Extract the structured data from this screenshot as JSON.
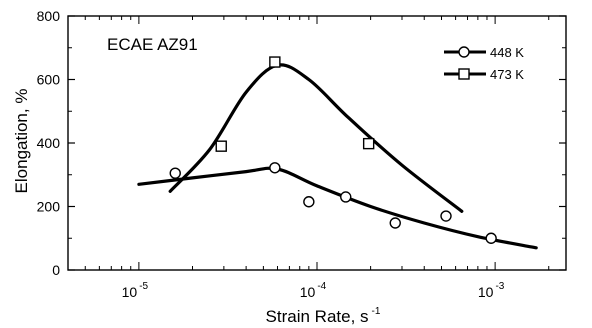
{
  "chart_data": {
    "type": "scatter",
    "title": "",
    "annotation": "ECAE AZ91",
    "xlabel": "Strain Rate, s",
    "xlabel_sup": "-1",
    "ylabel": "Elongation, %",
    "x_scale": "log",
    "xlim": [
      4e-06,
      0.0025
    ],
    "ylim": [
      0,
      800
    ],
    "y_ticks": [
      0,
      200,
      400,
      600,
      800
    ],
    "x_ticks": [
      {
        "value": 1e-05,
        "base": "10",
        "exp": "-5"
      },
      {
        "value": 0.0001,
        "base": "10",
        "exp": "-4"
      },
      {
        "value": 0.001,
        "base": "10",
        "exp": "-3"
      }
    ],
    "grid": false,
    "legend": "top-right",
    "series": [
      {
        "name": "448 K",
        "marker": "circle",
        "points": [
          {
            "x": 1.6e-05,
            "y": 305
          },
          {
            "x": 5.8e-05,
            "y": 322
          },
          {
            "x": 9e-05,
            "y": 215
          },
          {
            "x": 0.000145,
            "y": 230
          },
          {
            "x": 0.000275,
            "y": 148
          },
          {
            "x": 0.00053,
            "y": 170
          },
          {
            "x": 0.00095,
            "y": 100
          }
        ],
        "fit": [
          {
            "x": 1e-05,
            "y": 270
          },
          {
            "x": 2e-05,
            "y": 290
          },
          {
            "x": 4e-05,
            "y": 310
          },
          {
            "x": 6e-05,
            "y": 318
          },
          {
            "x": 0.0001,
            "y": 265
          },
          {
            "x": 0.0002,
            "y": 200
          },
          {
            "x": 0.0004,
            "y": 148
          },
          {
            "x": 0.0008,
            "y": 105
          },
          {
            "x": 0.0017,
            "y": 70
          }
        ]
      },
      {
        "name": "473 K",
        "marker": "square",
        "points": [
          {
            "x": 2.9e-05,
            "y": 390
          },
          {
            "x": 5.8e-05,
            "y": 655
          },
          {
            "x": 0.000195,
            "y": 398
          }
        ],
        "fit": [
          {
            "x": 1.5e-05,
            "y": 248
          },
          {
            "x": 2.5e-05,
            "y": 380
          },
          {
            "x": 4e-05,
            "y": 560
          },
          {
            "x": 6e-05,
            "y": 645
          },
          {
            "x": 9e-05,
            "y": 600
          },
          {
            "x": 0.00015,
            "y": 480
          },
          {
            "x": 0.0003,
            "y": 330
          },
          {
            "x": 0.00065,
            "y": 185
          }
        ]
      }
    ]
  }
}
